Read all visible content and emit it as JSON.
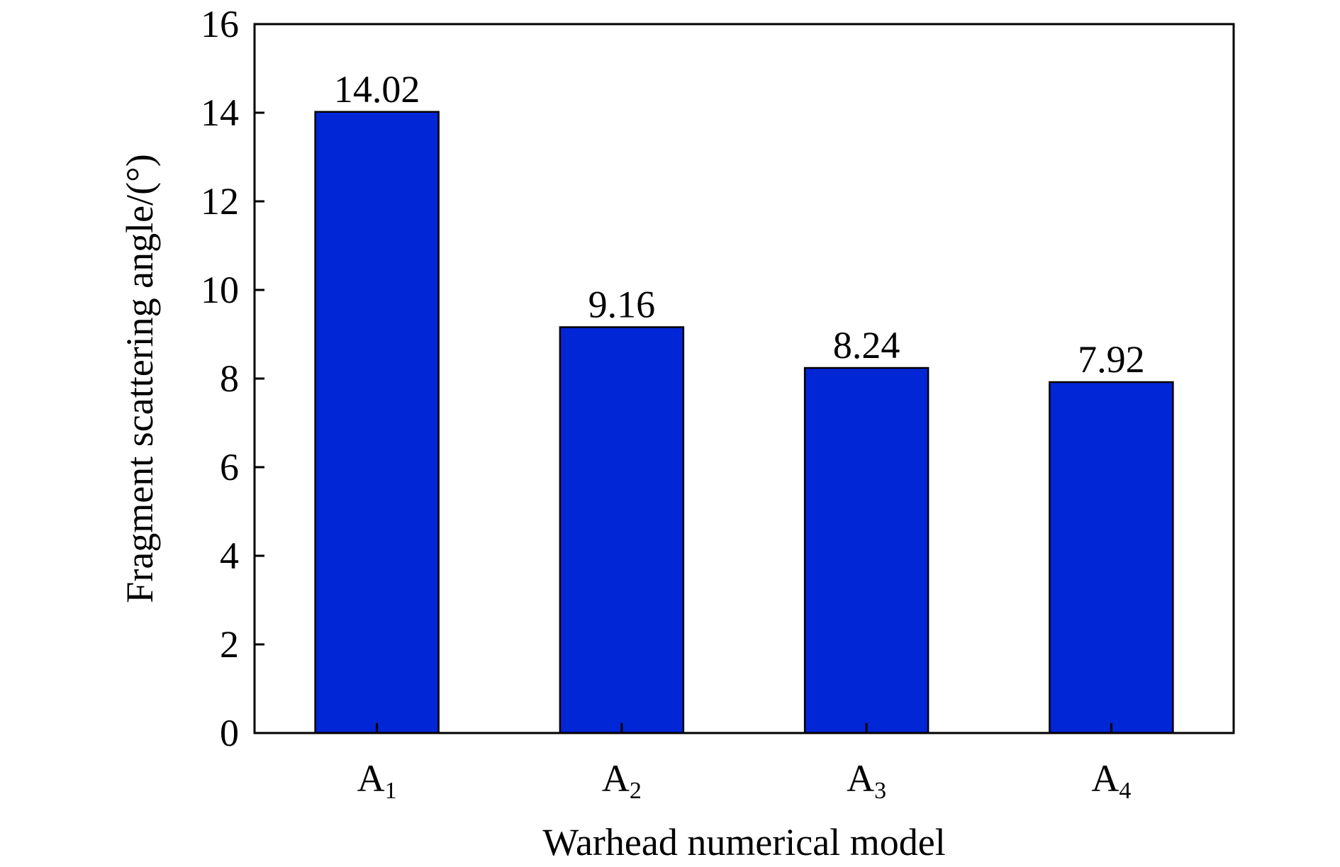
{
  "chart_data": {
    "type": "bar",
    "categories": [
      {
        "base": "A",
        "sub": "1"
      },
      {
        "base": "A",
        "sub": "2"
      },
      {
        "base": "A",
        "sub": "3"
      },
      {
        "base": "A",
        "sub": "4"
      }
    ],
    "values": [
      14.02,
      9.16,
      8.24,
      7.92
    ],
    "data_labels": [
      "14.02",
      "9.16",
      "8.24",
      "7.92"
    ],
    "xlabel": "Warhead numerical model",
    "ylabel": "Fragment scattering angle/(°)",
    "ylim": [
      0,
      16
    ],
    "yticks": [
      0,
      2,
      4,
      6,
      8,
      10,
      12,
      14,
      16
    ],
    "bar_color": "#0026d6",
    "grid": false,
    "legend": "none"
  }
}
